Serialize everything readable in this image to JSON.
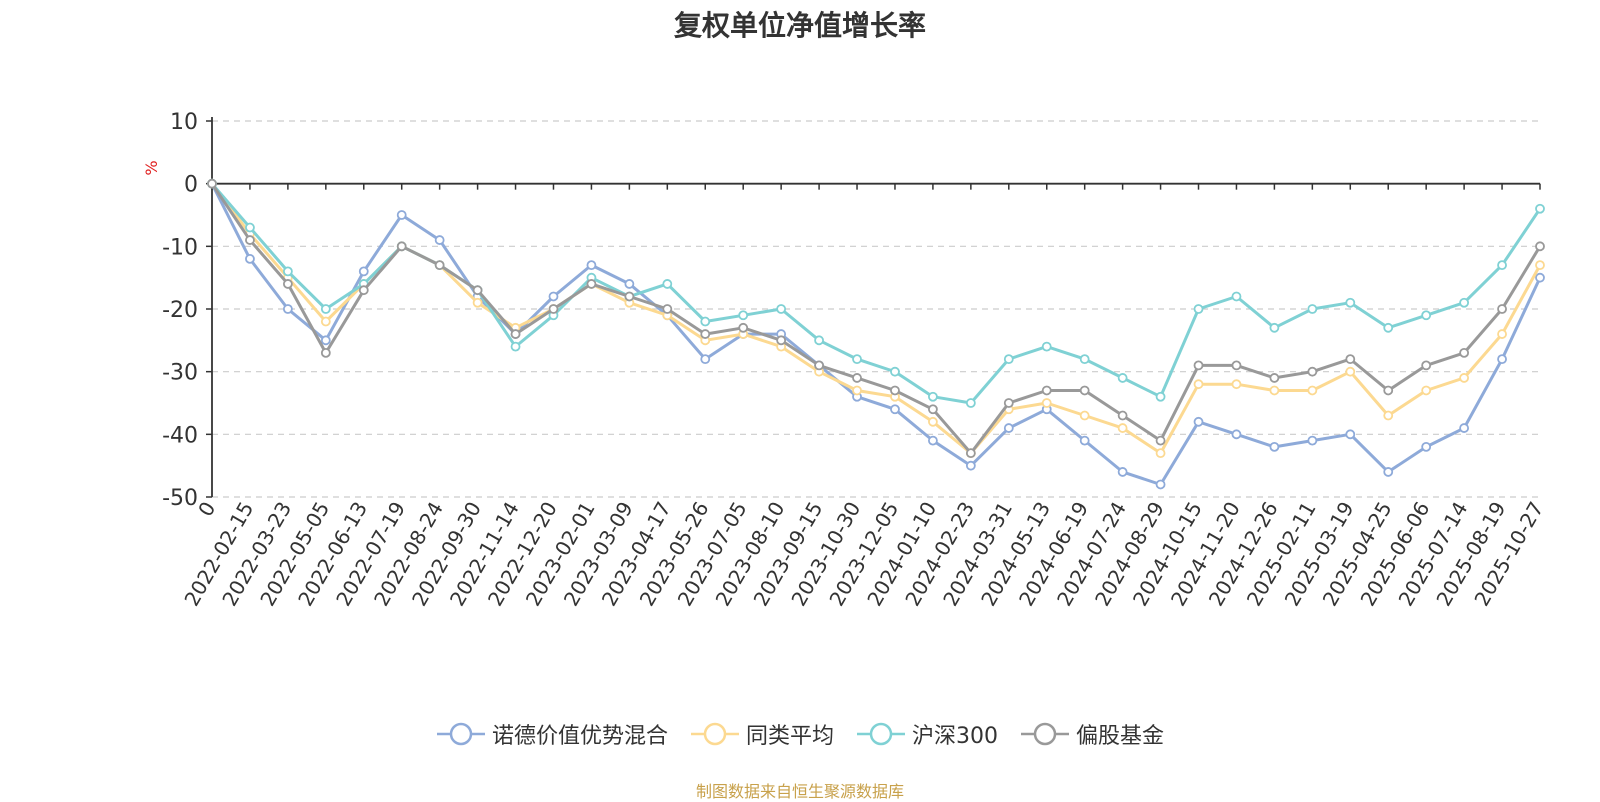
{
  "chart_data": {
    "type": "line",
    "title": "复权单位净值增长率",
    "ylabel": "%",
    "xlabel": "",
    "ylim": [
      -50,
      10
    ],
    "yticks": [
      10,
      0,
      -10,
      -20,
      -30,
      -40,
      -50
    ],
    "grid": true,
    "legend_position": "bottom",
    "source": "制图数据来自恒生聚源数据库",
    "x_tick_labels": [
      "0",
      "2022-02-15",
      "2022-03-23",
      "2022-05-05",
      "2022-06-13",
      "2022-07-19",
      "2022-08-24",
      "2022-09-30",
      "2022-11-14",
      "2022-12-20",
      "2023-02-01",
      "2023-03-09",
      "2023-04-17",
      "2023-05-26",
      "2023-07-05",
      "2023-08-10",
      "2023-09-15",
      "2023-10-30",
      "2023-12-05",
      "2024-01-10",
      "2024-02-23",
      "2024-03-31",
      "2024-05-13",
      "2024-06-19",
      "2024-07-24",
      "2024-08-29",
      "2024-10-15",
      "2024-11-20",
      "2024-12-26",
      "2025-02-11",
      "2025-03-19",
      "2025-04-25",
      "2025-06-06",
      "2025-07-14",
      "2025-08-19",
      "2025-10-27"
    ],
    "series": [
      {
        "name": "诺德价值优势混合",
        "color": "#8eaad9",
        "values": [
          0,
          -12,
          -20,
          -25,
          -14,
          -5,
          -9,
          -18,
          -24,
          -18,
          -13,
          -16,
          -21,
          -28,
          -24,
          -24,
          -29,
          -34,
          -36,
          -41,
          -45,
          -39,
          -36,
          -41,
          -46,
          -48,
          -38,
          -40,
          -42,
          -41,
          -40,
          -46,
          -42,
          -39,
          -28,
          -15
        ]
      },
      {
        "name": "同类平均",
        "color": "#fcd991",
        "values": [
          0,
          -8,
          -15,
          -22,
          -16,
          -10,
          -13,
          -19,
          -23,
          -20,
          -16,
          -19,
          -21,
          -25,
          -24,
          -26,
          -30,
          -33,
          -34,
          -38,
          -43,
          -36,
          -35,
          -37,
          -39,
          -43,
          -32,
          -32,
          -33,
          -33,
          -30,
          -37,
          -33,
          -31,
          -24,
          -13
        ]
      },
      {
        "name": "沪深300",
        "color": "#7fd1d4",
        "values": [
          0,
          -7,
          -14,
          -20,
          -16,
          -10,
          -13,
          -17,
          -26,
          -21,
          -15,
          -18,
          -16,
          -22,
          -21,
          -20,
          -25,
          -28,
          -30,
          -34,
          -35,
          -28,
          -26,
          -28,
          -31,
          -34,
          -20,
          -18,
          -23,
          -20,
          -19,
          -23,
          -21,
          -19,
          -13,
          -4
        ]
      },
      {
        "name": "偏股基金",
        "color": "#999999",
        "values": [
          0,
          -9,
          -16,
          -27,
          -17,
          -10,
          -13,
          -17,
          -24,
          -20,
          -16,
          -18,
          -20,
          -24,
          -23,
          -25,
          -29,
          -31,
          -33,
          -36,
          -43,
          -35,
          -33,
          -33,
          -37,
          -41,
          -29,
          -29,
          -31,
          -30,
          -28,
          -33,
          -29,
          -27,
          -20,
          -10
        ]
      }
    ]
  }
}
